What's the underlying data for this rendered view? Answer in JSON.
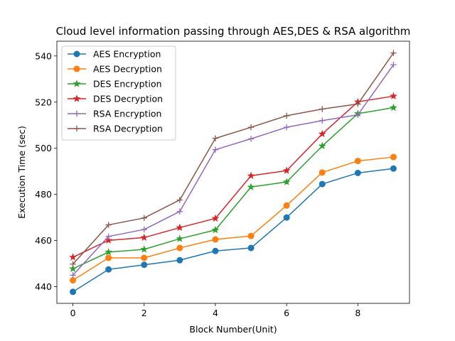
{
  "chart_data": {
    "type": "line",
    "title": "Cloud level  information passing through AES,DES & RSA algorithm",
    "xlabel": "Block Number(Unit)",
    "ylabel": "Execution Time (sec)",
    "xlim": [
      -0.45,
      9.45
    ],
    "ylim": [
      432.8,
      546.4
    ],
    "xticks": [
      0,
      2,
      4,
      6,
      8
    ],
    "yticks": [
      440,
      460,
      480,
      500,
      520,
      540
    ],
    "grid": false,
    "legend": "upper left",
    "x": [
      0,
      1,
      2,
      3,
      4,
      5,
      6,
      7,
      8,
      9
    ],
    "series": [
      {
        "name": "AES Encryption",
        "color": "#1f77b4",
        "marker": "circle",
        "values": [
          437.8,
          447.5,
          449.5,
          451.5,
          455.5,
          456.8,
          470.0,
          484.5,
          489.3,
          491.2
        ]
      },
      {
        "name": "AES Decryption",
        "color": "#ff7f0e",
        "marker": "circle",
        "values": [
          442.8,
          452.5,
          452.5,
          456.8,
          460.5,
          462.0,
          475.2,
          489.5,
          494.5,
          496.2
        ]
      },
      {
        "name": "DES Encryption",
        "color": "#2ca02c",
        "marker": "star",
        "values": [
          447.8,
          455.0,
          456.2,
          460.8,
          464.6,
          483.2,
          485.4,
          501.0,
          515.0,
          517.6
        ]
      },
      {
        "name": "DES Decryption",
        "color": "#d62728",
        "marker": "star",
        "values": [
          452.8,
          460.1,
          461.3,
          465.6,
          469.6,
          488.1,
          490.3,
          506.2,
          520.1,
          522.6
        ]
      },
      {
        "name": "RSA Encryption",
        "color": "#9467bd",
        "marker": "plus",
        "values": [
          445.0,
          461.8,
          464.8,
          472.6,
          499.4,
          504.1,
          509.1,
          512.0,
          514.5,
          536.2
        ]
      },
      {
        "name": "RSA Decryption",
        "color": "#8c564b",
        "marker": "plus",
        "values": [
          449.8,
          466.8,
          469.8,
          477.6,
          504.3,
          509.1,
          514.1,
          517.0,
          519.2,
          541.3
        ]
      }
    ]
  }
}
